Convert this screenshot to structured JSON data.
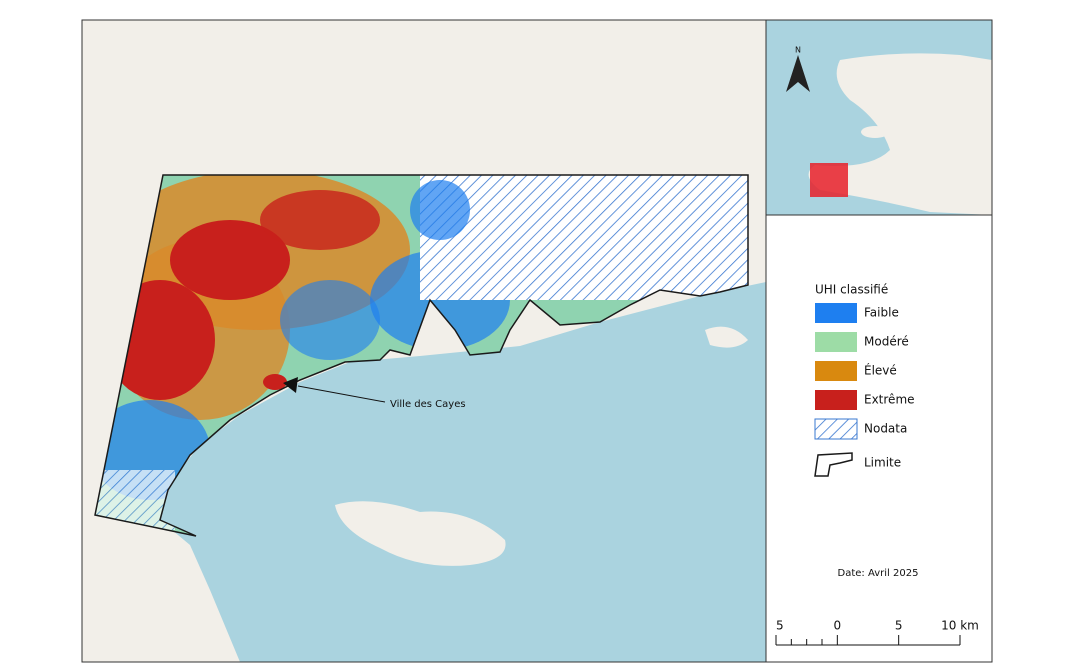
{
  "map": {
    "annotation": "Ville des Cayes",
    "north": "N",
    "legend": {
      "title": "UHI classifié",
      "items": [
        {
          "label": "Faible",
          "color": "#1e7ff0"
        },
        {
          "label": "Modéré",
          "color": "#9ddca6"
        },
        {
          "label": "Élevé",
          "color": "#d9890f"
        },
        {
          "label": "Extrême",
          "color": "#c8201c"
        },
        {
          "label": "Nodata",
          "color": "#3a78d0"
        },
        {
          "label": "Limite",
          "color": "#1a1a1a"
        }
      ]
    },
    "date": "Date: Avril 2025",
    "scale_bar": {
      "labels": [
        "5",
        "0",
        "5",
        "10 km"
      ]
    }
  }
}
